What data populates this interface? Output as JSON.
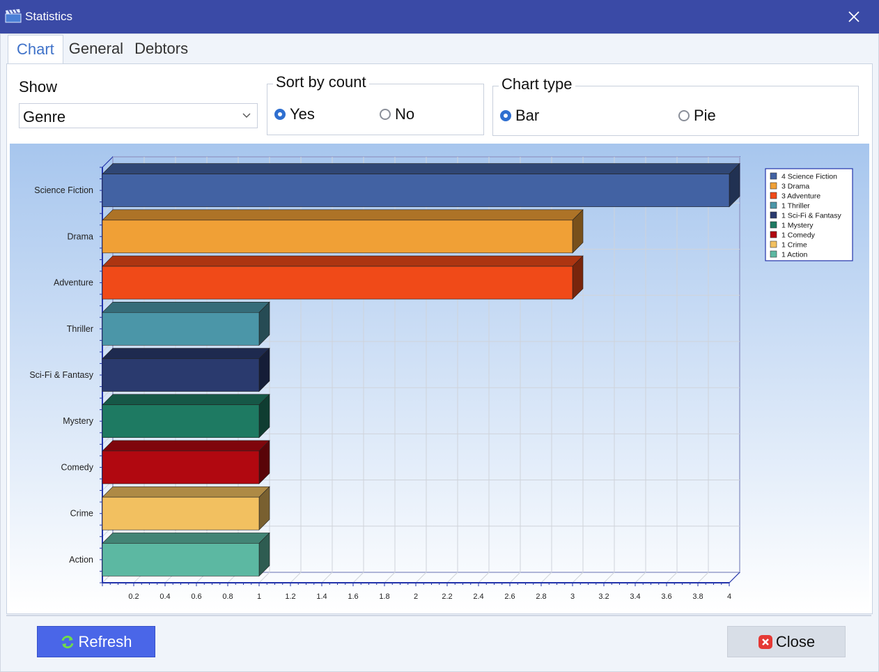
{
  "window": {
    "title": "Statistics"
  },
  "tabs": [
    {
      "label": "Chart",
      "active": true
    },
    {
      "label": "General",
      "active": false
    },
    {
      "label": "Debtors",
      "active": false
    }
  ],
  "show": {
    "label": "Show",
    "selected": "Genre"
  },
  "sort": {
    "title": "Sort by count",
    "options": [
      "Yes",
      "No"
    ],
    "selected": "Yes"
  },
  "chart_type": {
    "title": "Chart type",
    "options": [
      "Bar",
      "Pie"
    ],
    "selected": "Bar"
  },
  "buttons": {
    "refresh": "Refresh",
    "close": "Close"
  },
  "icons": {
    "app": "clapperboard-icon",
    "close": "close-icon",
    "refresh": "refresh-icon",
    "cancel": "cancel-icon",
    "dropdown": "chevron-down-icon"
  },
  "chart_data": {
    "type": "bar",
    "orientation": "horizontal",
    "three_d": true,
    "categories": [
      "Science Fiction",
      "Drama",
      "Adventure",
      "Thriller",
      "Sci-Fi & Fantasy",
      "Mystery",
      "Comedy",
      "Crime",
      "Action"
    ],
    "values": [
      4,
      3,
      3,
      1,
      1,
      1,
      1,
      1,
      1
    ],
    "colors": [
      "#4262a3",
      "#f0a036",
      "#f04a18",
      "#4b96a8",
      "#2a3a6e",
      "#1e7a62",
      "#b10810",
      "#f2c060",
      "#5cb8a2"
    ],
    "xlim": [
      0,
      4
    ],
    "xticks": [
      "0.2",
      "0.4",
      "0.6",
      "0.8",
      "1",
      "1.2",
      "1.4",
      "1.6",
      "1.8",
      "2",
      "2.2",
      "2.4",
      "2.6",
      "2.8",
      "3",
      "3.2",
      "3.4",
      "3.6",
      "3.8",
      "4"
    ],
    "legend": {
      "position": "top-right",
      "entries": [
        "4 Science Fiction",
        "3 Drama",
        "3 Adventure",
        "1 Thriller",
        "1 Sci-Fi & Fantasy",
        "1 Mystery",
        "1 Comedy",
        "1 Crime",
        "1 Action"
      ]
    },
    "grid": true,
    "title": "",
    "xlabel": "",
    "ylabel": ""
  }
}
